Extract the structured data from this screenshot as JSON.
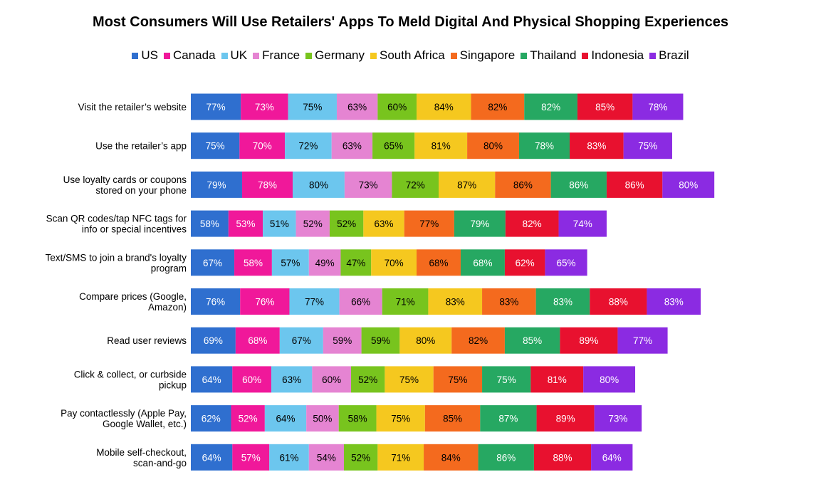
{
  "chart_data": {
    "type": "bar",
    "stacked": true,
    "orientation": "horizontal",
    "title": "Most Consumers Will Use Retailers' Apps To Meld Digital And Physical Shopping Experiences",
    "legend_position": "top",
    "categories": [
      [
        "Visit the retailer’s website"
      ],
      [
        "Use the retailer’s app"
      ],
      [
        "Use loyalty cards or coupons",
        "stored on your phone"
      ],
      [
        "Scan QR codes/tap NFC tags for",
        "info or special incentives"
      ],
      [
        "Text/SMS to join a brand's loyalty",
        "program"
      ],
      [
        "Compare prices (Google,",
        "Amazon)"
      ],
      [
        "Read user reviews"
      ],
      [
        "Click & collect, or curbside",
        "pickup"
      ],
      [
        "Pay contactlessly (Apple Pay,",
        "Google Wallet, etc.)"
      ],
      [
        "Mobile self-checkout,",
        "scan-and-go"
      ]
    ],
    "series": [
      {
        "name": "US",
        "color": "#2f6fcf",
        "label_color": "#ffffff",
        "values": [
          77,
          75,
          79,
          58,
          67,
          76,
          69,
          64,
          62,
          64
        ]
      },
      {
        "name": "Canada",
        "color": "#f0189a",
        "label_color": "#ffffff",
        "values": [
          73,
          70,
          78,
          53,
          58,
          76,
          68,
          60,
          52,
          57
        ]
      },
      {
        "name": "UK",
        "color": "#6cc6ee",
        "label_color": "#000000",
        "values": [
          75,
          72,
          80,
          51,
          57,
          77,
          67,
          63,
          64,
          61
        ]
      },
      {
        "name": "France",
        "color": "#e584d2",
        "label_color": "#000000",
        "values": [
          63,
          63,
          73,
          52,
          49,
          66,
          59,
          60,
          50,
          54
        ]
      },
      {
        "name": "Germany",
        "color": "#78c41e",
        "label_color": "#000000",
        "values": [
          60,
          65,
          72,
          52,
          47,
          71,
          59,
          52,
          58,
          52
        ]
      },
      {
        "name": "South Africa",
        "color": "#f5c81f",
        "label_color": "#000000",
        "values": [
          84,
          81,
          87,
          63,
          70,
          83,
          80,
          75,
          75,
          71
        ]
      },
      {
        "name": "Singapore",
        "color": "#f46a1e",
        "label_color": "#000000",
        "values": [
          82,
          80,
          86,
          77,
          68,
          83,
          82,
          75,
          85,
          84
        ]
      },
      {
        "name": "Thailand",
        "color": "#26a862",
        "label_color": "#ffffff",
        "values": [
          82,
          78,
          86,
          79,
          68,
          83,
          85,
          75,
          87,
          86
        ]
      },
      {
        "name": "Indonesia",
        "color": "#e8112f",
        "label_color": "#ffffff",
        "values": [
          85,
          83,
          86,
          82,
          62,
          88,
          89,
          81,
          89,
          88
        ]
      },
      {
        "name": "Brazil",
        "color": "#8b2be2",
        "label_color": "#ffffff",
        "values": [
          78,
          75,
          80,
          74,
          65,
          83,
          77,
          80,
          73,
          64
        ]
      }
    ],
    "value_suffix": "%",
    "grid": false
  }
}
